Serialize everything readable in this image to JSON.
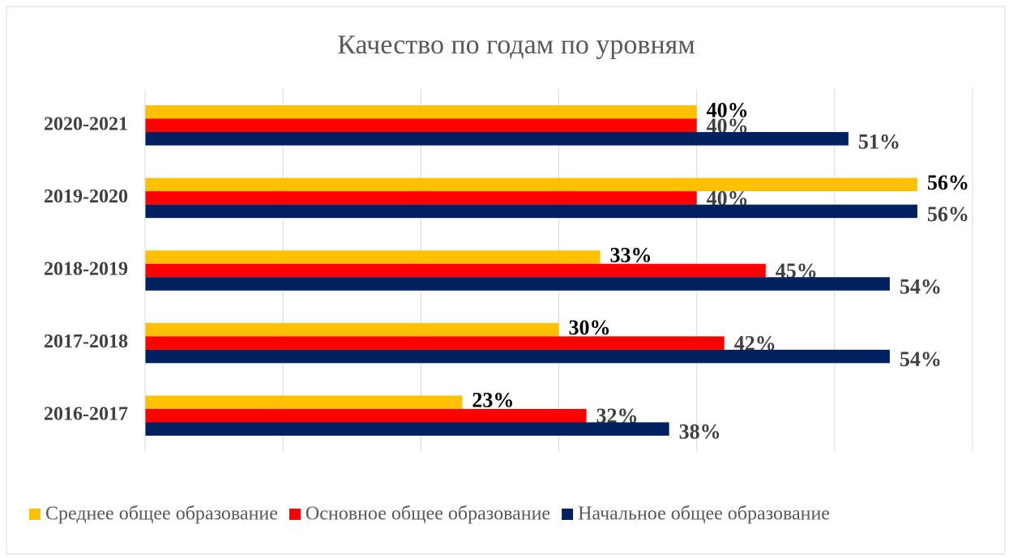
{
  "chart_data": {
    "type": "hbar",
    "title": "Качество по годам по уровням",
    "categories": [
      "2016-2017",
      "2017-2018",
      "2018-2019",
      "2019-2020",
      "2020-2021"
    ],
    "series": [
      {
        "name": "Среднее общее образование",
        "color": "#FFC000",
        "values": [
          23,
          30,
          33,
          56,
          40
        ],
        "value_labels": [
          "23%",
          "30%",
          "33%",
          "56%",
          "40%"
        ]
      },
      {
        "name": "Основное общее образование",
        "color": "#FF0000",
        "values": [
          32,
          42,
          45,
          40,
          40
        ],
        "value_labels": [
          "32%",
          "42%",
          "45%",
          "40%",
          "40%"
        ]
      },
      {
        "name": "Начальное общее образование",
        "color": "#002060",
        "values": [
          38,
          54,
          54,
          56,
          51
        ],
        "value_labels": [
          "38%",
          "54%",
          "54%",
          "56%",
          "51%"
        ]
      }
    ],
    "xlim": [
      0,
      60
    ],
    "xticks": [
      0,
      10,
      20,
      30,
      40,
      50,
      60
    ],
    "grid": true,
    "legend": "bottom"
  }
}
